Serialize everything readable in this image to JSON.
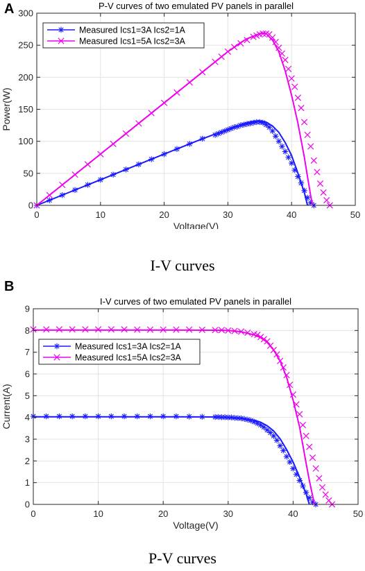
{
  "figure": {
    "panel_a_label": "A",
    "panel_b_label": "B",
    "caption_a": "I-V curves",
    "caption_b": "P-V curves"
  },
  "chart_data": [
    {
      "type": "line",
      "title": "P-V curves of two emulated PV panels in parallel",
      "xlabel": "Voltage(V)",
      "ylabel": "Power(W)",
      "xlim": [
        0,
        50
      ],
      "ylim": [
        0,
        300
      ],
      "xticks": [
        0,
        10,
        20,
        30,
        40,
        50
      ],
      "yticks": [
        0,
        50,
        100,
        150,
        200,
        250,
        300
      ],
      "grid": true,
      "legend_position": "top-left",
      "series": [
        {
          "name": "Measured Ics1=3A Ics2=1A",
          "color": "#1a1aff",
          "marker": "*",
          "measured": {
            "x": [
              0,
              2,
              4,
              6,
              8,
              10,
              12,
              14,
              16,
              18,
              20,
              22,
              24,
              26,
              28,
              28.5,
              29,
              29.5,
              30,
              30.5,
              31,
              31.5,
              32,
              32.5,
              33,
              33.5,
              34,
              34.5,
              35,
              35.5,
              36,
              36.5,
              37,
              37.5,
              38,
              38.5,
              39,
              39.5,
              40,
              40.5,
              41,
              41.5,
              42,
              42.5,
              43,
              43.5
            ],
            "y": [
              0,
              8,
              16,
              24,
              32,
              40,
              48,
              56,
              64,
              72,
              80,
              88,
              96,
              104,
              110,
              112,
              114,
              116,
              118,
              120,
              122,
              123,
              125,
              126,
              127,
              128,
              129,
              130,
              130,
              129,
              126,
              122,
              116,
              108,
              100,
              92,
              84,
              75,
              66,
              55,
              45,
              35,
              23,
              12,
              4,
              0
            ]
          },
          "model": {
            "x": [
              0,
              5,
              10,
              15,
              20,
              25,
              30,
              32,
              33,
              34,
              35,
              36,
              37,
              38,
              39,
              40,
              41,
              42,
              42.5
            ],
            "y": [
              0,
              20,
              40,
              60,
              80,
              100,
              119,
              126,
              129,
              131,
              132,
              130,
              124,
              114,
              98,
              78,
              50,
              20,
              0
            ]
          }
        },
        {
          "name": "Measured Ics1=5A Ics2=3A",
          "color": "#ee00ee",
          "marker": "x",
          "measured": {
            "x": [
              0,
              2,
              4,
              6,
              8,
              10,
              12,
              14,
              16,
              18,
              20,
              22,
              24,
              26,
              28,
              29,
              30,
              31,
              32,
              33,
              34,
              34.5,
              35,
              35.5,
              36,
              36.5,
              37,
              37.5,
              38,
              38.5,
              39,
              39.5,
              40,
              40.5,
              41,
              41.5,
              42,
              42.5,
              43,
              43.5,
              44,
              44.5,
              45,
              45.5,
              46
            ],
            "y": [
              0,
              16,
              32,
              48,
              64,
              80,
              96,
              112,
              128,
              144,
              160,
              176,
              192,
              208,
              224,
              232,
              240,
              247,
              253,
              258,
              263,
              265,
              267,
              268,
              268,
              267,
              262,
              255,
              246,
              237,
              227,
              213,
              198,
              185,
              168,
              152,
              130,
              110,
              92,
              70,
              52,
              34,
              20,
              8,
              0
            ]
          },
          "model": {
            "x": [
              0,
              5,
              10,
              15,
              20,
              25,
              30,
              32,
              33,
              34,
              35,
              35.5,
              36,
              37,
              38,
              39,
              40,
              41,
              42,
              42.5,
              43,
              43.3
            ],
            "y": [
              0,
              40,
              80,
              120,
              160,
              200,
              240,
              254,
              260,
              264,
              268,
              269,
              268,
              258,
              240,
              210,
              172,
              128,
              75,
              45,
              15,
              0
            ]
          }
        }
      ]
    },
    {
      "type": "line",
      "title": "I-V curves of two emulated PV panels in parallel",
      "xlabel": "Voltage(V)",
      "ylabel": "Current(A)",
      "xlim": [
        0,
        50
      ],
      "ylim": [
        0,
        9
      ],
      "xticks": [
        0,
        10,
        20,
        30,
        40,
        50
      ],
      "yticks": [
        0,
        1,
        2,
        3,
        4,
        5,
        6,
        7,
        8,
        9
      ],
      "grid": true,
      "legend_position": "top-left",
      "series": [
        {
          "name": "Measured Ics1=3A Ics2=1A",
          "color": "#1a1aff",
          "marker": "*",
          "measured": {
            "x": [
              0,
              2,
              4,
              6,
              8,
              10,
              12,
              14,
              16,
              18,
              20,
              22,
              24,
              26,
              28,
              28.5,
              29,
              29.5,
              30,
              30.5,
              31,
              31.5,
              32,
              32.5,
              33,
              33.5,
              34,
              34.5,
              35,
              35.5,
              36,
              36.5,
              37,
              37.5,
              38,
              38.5,
              39,
              39.5,
              40,
              40.5,
              41,
              41.5,
              42,
              42.5,
              43,
              43.5
            ],
            "y": [
              4.05,
              4.05,
              4.05,
              4.05,
              4.05,
              4.05,
              4.05,
              4.05,
              4.05,
              4.05,
              4.05,
              4.05,
              4.04,
              4.03,
              4.02,
              4.02,
              4.01,
              4.01,
              4.0,
              4.0,
              3.98,
              3.97,
              3.96,
              3.93,
              3.9,
              3.86,
              3.8,
              3.73,
              3.65,
              3.55,
              3.42,
              3.3,
              3.15,
              2.95,
              2.7,
              2.48,
              2.2,
              1.95,
              1.65,
              1.38,
              1.1,
              0.85,
              0.55,
              0.3,
              0.1,
              0
            ]
          },
          "model": {
            "x": [
              0,
              10,
              20,
              28,
              30,
              32,
              34,
              35,
              36,
              37,
              38,
              39,
              40,
              41,
              42,
              42.5
            ],
            "y": [
              4.03,
              4.03,
              4.03,
              4.02,
              4.0,
              3.96,
              3.87,
              3.78,
              3.62,
              3.38,
              3.02,
              2.52,
              1.95,
              1.24,
              0.48,
              0
            ]
          }
        },
        {
          "name": "Measured Ics1=5A Ics2=3A",
          "color": "#ee00ee",
          "marker": "x",
          "measured": {
            "x": [
              0,
              2,
              4,
              6,
              8,
              10,
              12,
              14,
              16,
              18,
              20,
              22,
              24,
              26,
              28,
              29,
              30,
              31,
              32,
              33,
              34,
              34.5,
              35,
              35.5,
              36,
              36.5,
              37,
              37.5,
              38,
              38.5,
              39,
              39.5,
              40,
              40.5,
              41,
              41.5,
              42,
              42.5,
              43,
              43.5,
              44,
              44.5,
              45,
              45.5,
              46
            ],
            "y": [
              8.05,
              8.05,
              8.05,
              8.05,
              8.05,
              8.05,
              8.05,
              8.05,
              8.04,
              8.04,
              8.04,
              8.04,
              8.04,
              8.03,
              8.02,
              8.02,
              8.0,
              7.98,
              7.95,
              7.9,
              7.83,
              7.8,
              7.7,
              7.6,
              7.5,
              7.3,
              7.1,
              6.9,
              6.6,
              6.3,
              5.95,
              5.5,
              5.05,
              4.6,
              4.15,
              3.65,
              3.15,
              2.65,
              2.15,
              1.65,
              1.2,
              0.78,
              0.45,
              0.18,
              0
            ]
          },
          "model": {
            "x": [
              0,
              10,
              20,
              28,
              30,
              32,
              34,
              35,
              36,
              37,
              38,
              39,
              40,
              41,
              42,
              42.5,
              43,
              43.3
            ],
            "y": [
              8.02,
              8.02,
              8.02,
              8.01,
              8.0,
              7.94,
              7.8,
              7.67,
              7.46,
              7.1,
              6.6,
              5.85,
              4.8,
              3.55,
              1.9,
              1.1,
              0.4,
              0
            ]
          }
        }
      ]
    }
  ]
}
